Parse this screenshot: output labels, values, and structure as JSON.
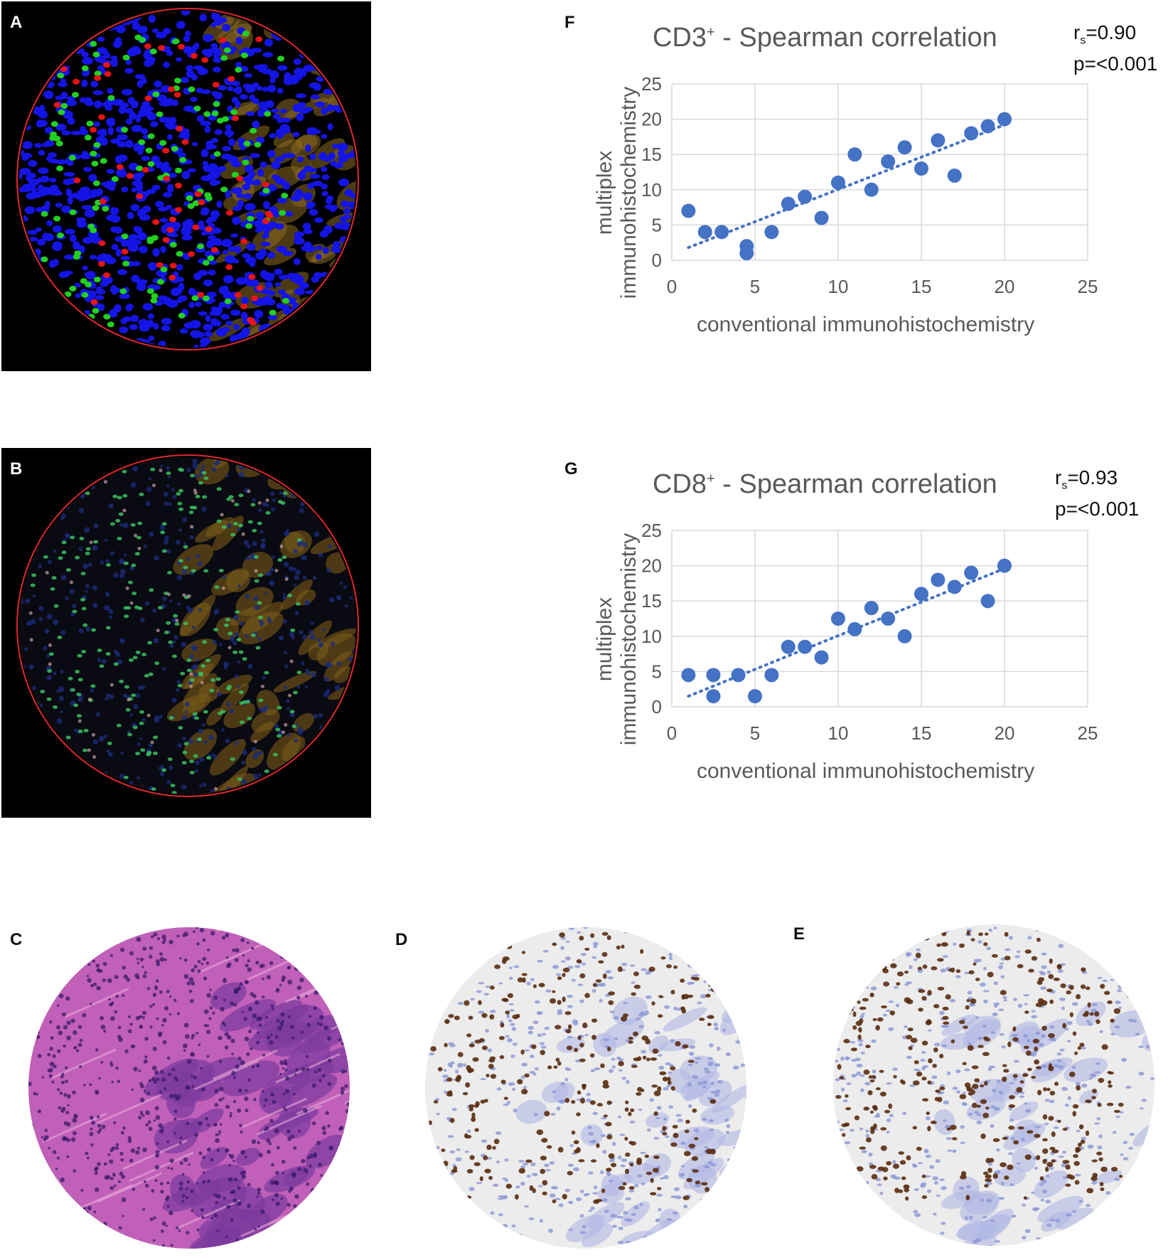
{
  "panels": {
    "a": {
      "label": "A"
    },
    "b": {
      "label": "B"
    },
    "c": {
      "label": "C"
    },
    "d": {
      "label": "D"
    },
    "e": {
      "label": "E"
    },
    "f": {
      "label": "F"
    },
    "g": {
      "label": "G"
    }
  },
  "colors": {
    "ring": "#e0282e",
    "nuclei_blue": "#1414e6",
    "cd3_red": "#e61414",
    "cd8_green": "#22d022",
    "tumor_gold": "#8a6a20",
    "he_pink": "#c060b8",
    "he_purple": "#7a3a9c",
    "ihc_brown": "#5a2c10",
    "ihc_blue": "#8a96d6",
    "marker": "#4472c4",
    "trend": "#4472c4",
    "grid": "#d9d9d9",
    "axis_text": "#595959"
  },
  "chart_data": [
    {
      "type": "scatter",
      "panel": "F",
      "title_main": "CD3",
      "title_sup": "+",
      "title_rest": " - Spearman correlation",
      "stat_r_prefix": "r",
      "stat_r_sub": "s",
      "stat_r_value": "=0.90",
      "stat_p": "p=<0.001",
      "xlabel": "conventional immunohistochemistry",
      "ylabel_line1": "multiplex",
      "ylabel_line2": "immunohistochemistry",
      "xlim": [
        0,
        25
      ],
      "ylim": [
        0,
        25
      ],
      "xticks": [
        "0",
        "5",
        "10",
        "15",
        "20",
        "25"
      ],
      "yticks": [
        "0",
        "5",
        "10",
        "15",
        "20",
        "25"
      ],
      "points": [
        [
          1,
          7
        ],
        [
          2,
          4
        ],
        [
          3,
          4
        ],
        [
          4.5,
          2
        ],
        [
          4.5,
          1
        ],
        [
          6,
          4
        ],
        [
          7,
          8
        ],
        [
          8,
          9
        ],
        [
          9,
          6
        ],
        [
          10,
          11
        ],
        [
          11,
          15
        ],
        [
          12,
          10
        ],
        [
          13,
          14
        ],
        [
          14,
          16
        ],
        [
          15,
          13
        ],
        [
          16,
          17
        ],
        [
          17,
          12
        ],
        [
          18,
          18
        ],
        [
          19,
          19
        ],
        [
          20,
          20
        ]
      ],
      "trendline": {
        "x": [
          1,
          20
        ],
        "y": [
          1.8,
          19.2
        ]
      }
    },
    {
      "type": "scatter",
      "panel": "G",
      "title_main": "CD8",
      "title_sup": "+",
      "title_rest": " - Spearman correlation",
      "stat_r_prefix": "r",
      "stat_r_sub": "s",
      "stat_r_value": "=0.93",
      "stat_p": "p=<0.001",
      "xlabel": "conventional immunohistochemistry",
      "ylabel_line1": "multiplex",
      "ylabel_line2": "immunohistochemistry",
      "xlim": [
        0,
        25
      ],
      "ylim": [
        0,
        25
      ],
      "xticks": [
        "0",
        "5",
        "10",
        "15",
        "20",
        "25"
      ],
      "yticks": [
        "0",
        "5",
        "10",
        "15",
        "20",
        "25"
      ],
      "points": [
        [
          1,
          4.5
        ],
        [
          2.5,
          4.5
        ],
        [
          2.5,
          1.5
        ],
        [
          4,
          4.5
        ],
        [
          5,
          1.5
        ],
        [
          6,
          4.5
        ],
        [
          7,
          8.5
        ],
        [
          8,
          8.5
        ],
        [
          9,
          7
        ],
        [
          10,
          12.5
        ],
        [
          11,
          11
        ],
        [
          12,
          14
        ],
        [
          13,
          12.5
        ],
        [
          14,
          10
        ],
        [
          15,
          16
        ],
        [
          16,
          18
        ],
        [
          17,
          17
        ],
        [
          18,
          19
        ],
        [
          19,
          15
        ],
        [
          20,
          20
        ]
      ],
      "trendline": {
        "x": [
          1,
          20
        ],
        "y": [
          1.5,
          19.6
        ]
      }
    }
  ]
}
